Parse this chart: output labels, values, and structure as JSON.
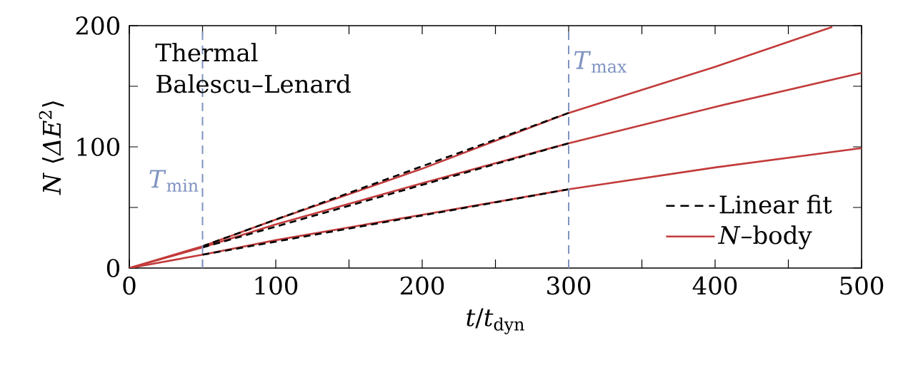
{
  "chart_data": {
    "type": "line",
    "xlabel": "*t*/*t*$_{dyn}$",
    "ylabel": "*N* ⟨*ΔE*$^{2}$⟩",
    "annotations": [
      "Thermal",
      "Balescu–Lenard"
    ],
    "xlim": [
      0,
      500
    ],
    "ylim": [
      0,
      200
    ],
    "xticks": [
      0,
      {
        "value": 50,
        "label": null
      },
      100,
      {
        "value": 150,
        "label": null
      },
      200,
      {
        "value": 250,
        "label": null
      },
      300,
      {
        "value": 350,
        "label": null
      },
      400,
      {
        "value": 450,
        "label": null
      },
      500
    ],
    "yticks": [
      0,
      {
        "value": 50,
        "label": null
      },
      100,
      {
        "value": 150,
        "label": null
      },
      200
    ],
    "legend": "bottom right",
    "ref_lines": [
      {
        "axis": "x",
        "value": 50,
        "label": "*T*$_{min}$",
        "color": "#7f93c0",
        "line_style": "dashed"
      },
      {
        "axis": "x",
        "value": 300,
        "label": "*T*$_{max}$",
        "color": "#7f93c0",
        "line_style": "dashed"
      }
    ],
    "series": [
      {
        "name": "Linear fit",
        "color": "#000000",
        "line_style": "dashed",
        "x": [
          50,
          300
        ],
        "values": [
          18,
          128
        ]
      },
      {
        "color": "#000000",
        "line_style": "dashed",
        "x": [
          50,
          300
        ],
        "values": [
          17,
          103
        ]
      },
      {
        "color": "#000000",
        "line_style": "dashed",
        "x": [
          50,
          300
        ],
        "values": [
          11,
          65
        ]
      },
      {
        "name": "*N*–body",
        "color": "#c23b3b",
        "line_style": "solid",
        "x": [
          0,
          50,
          100,
          200,
          300,
          400,
          480
        ],
        "values": [
          0,
          18,
          40,
          82,
          128,
          166,
          199
        ]
      },
      {
        "color": "#c23b3b",
        "line_style": "solid",
        "x": [
          0,
          50,
          100,
          200,
          300,
          400,
          500
        ],
        "values": [
          0,
          17,
          36,
          70,
          103,
          133,
          161
        ]
      },
      {
        "color": "#c23b3b",
        "line_style": "solid",
        "x": [
          0,
          50,
          100,
          200,
          300,
          400,
          500
        ],
        "values": [
          0,
          11,
          23,
          44,
          65,
          83,
          99
        ]
      }
    ]
  }
}
